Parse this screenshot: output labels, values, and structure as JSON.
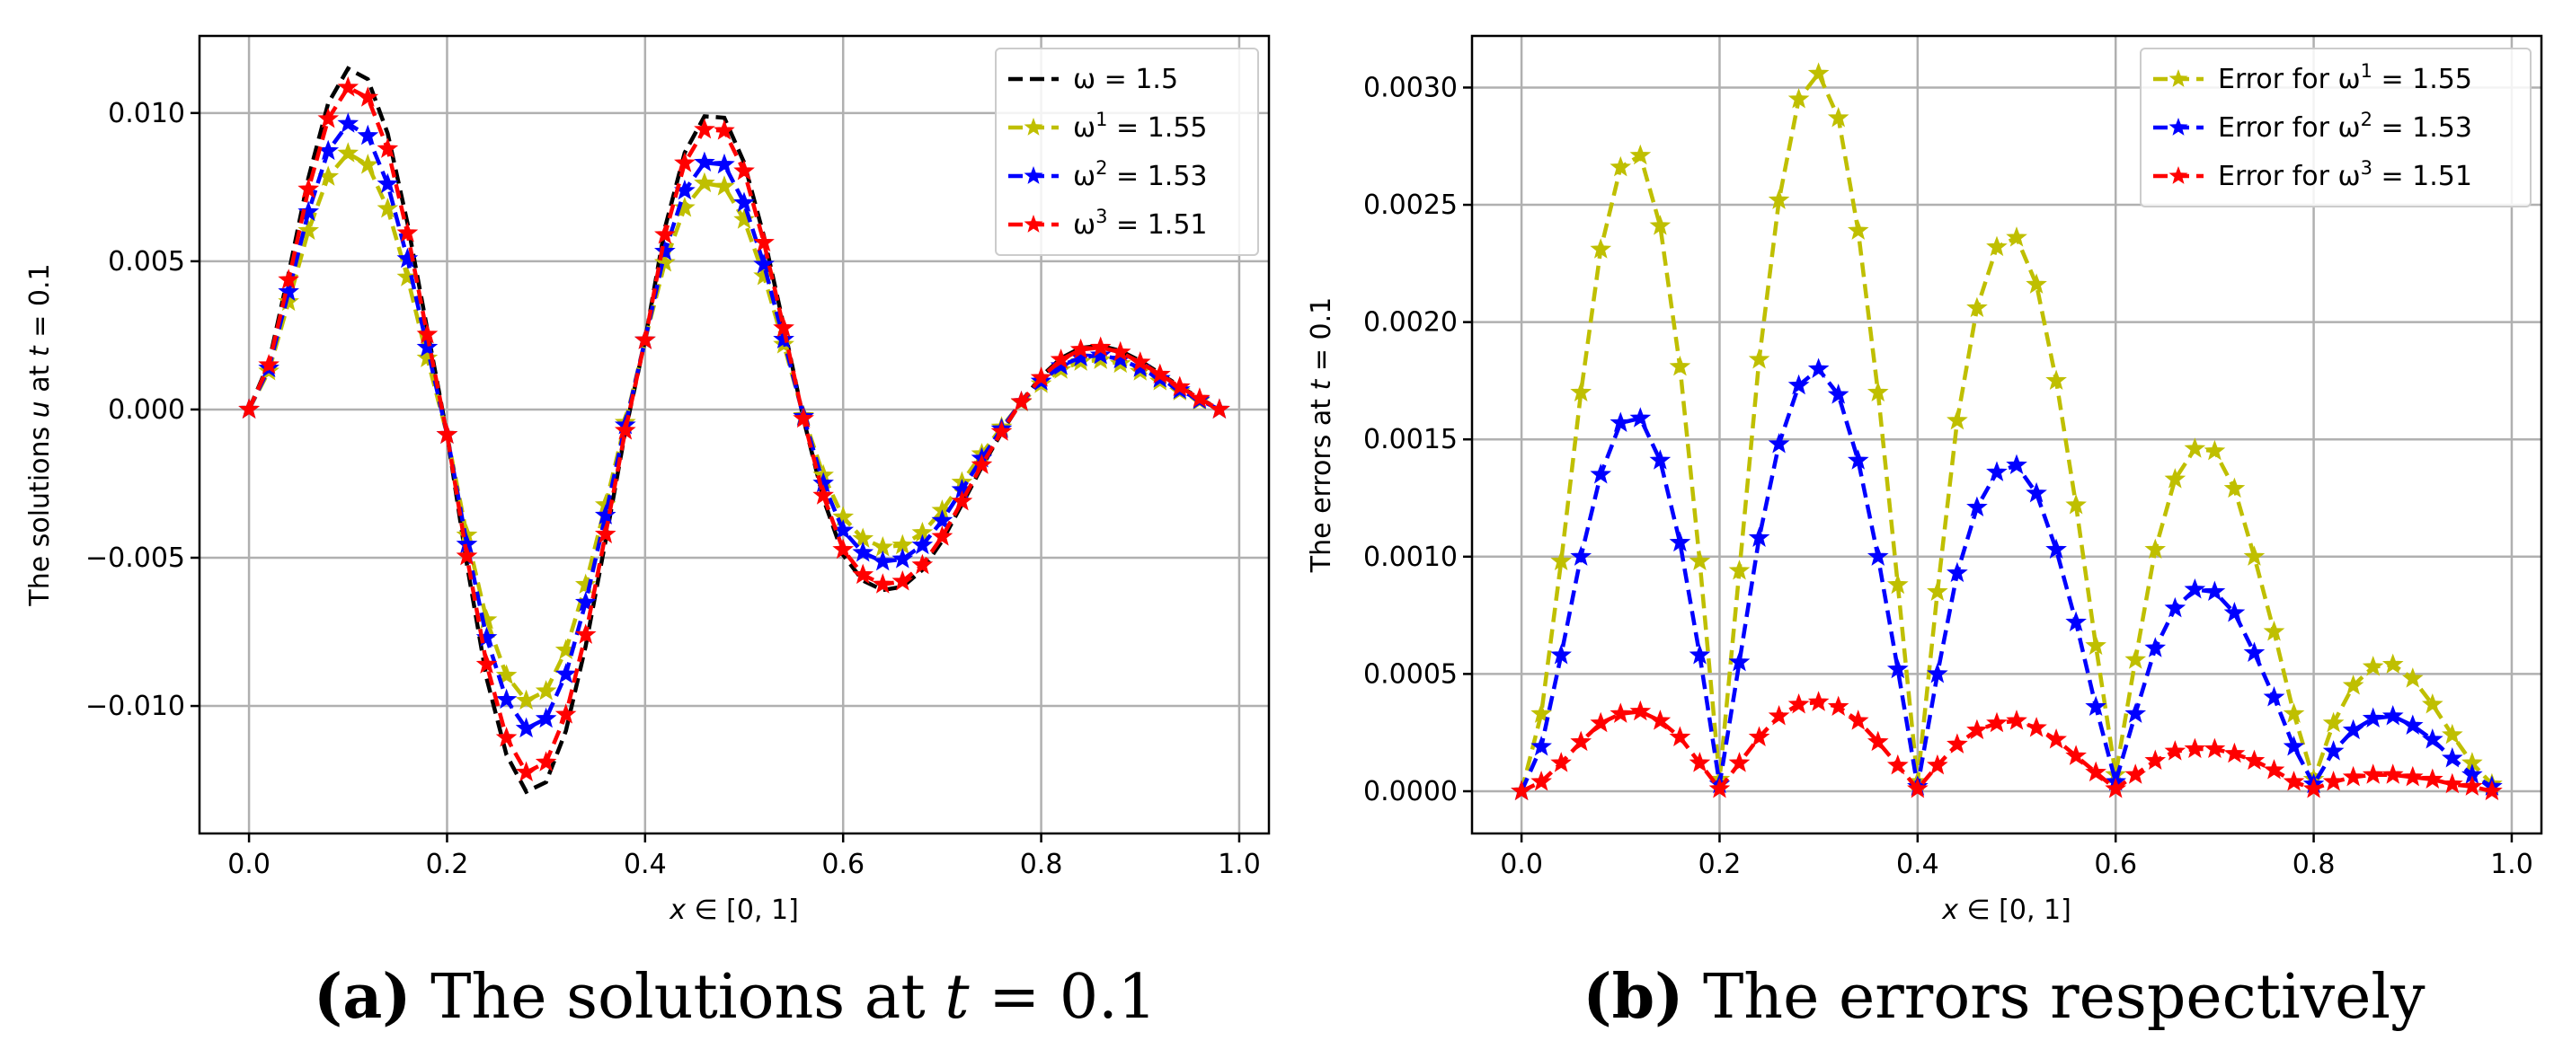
{
  "captions": {
    "a": {
      "label": "(a)",
      "text": "The solutions at ",
      "var": "t",
      "rest": " = 0.1"
    },
    "b": {
      "label": "(b)",
      "text": "The errors respectively"
    }
  },
  "chart_data": [
    {
      "type": "line",
      "title": "",
      "xlabel_parts": [
        "x",
        " ∈ [0, 1]"
      ],
      "ylabel_parts": [
        "The solutions ",
        "u",
        " at ",
        "t",
        " = 0.1"
      ],
      "xlim": [
        -0.05,
        1.03
      ],
      "ylim": [
        -0.0143,
        0.0126
      ],
      "xticks": [
        0.0,
        0.2,
        0.4,
        0.6,
        0.8,
        1.0
      ],
      "xtick_labels": [
        "0.0",
        "0.2",
        "0.4",
        "0.6",
        "0.8",
        "1.0"
      ],
      "yticks": [
        -0.01,
        -0.005,
        0.0,
        0.005,
        0.01
      ],
      "ytick_labels": [
        "−0.010",
        "−0.005",
        "0.000",
        "0.005",
        "0.010"
      ],
      "grid": true,
      "legend_position": "top-right",
      "x": [
        0.0,
        0.02,
        0.04,
        0.06,
        0.08,
        0.1,
        0.12,
        0.14,
        0.16,
        0.18,
        0.2,
        0.22,
        0.24,
        0.26,
        0.28,
        0.3,
        0.32,
        0.34,
        0.36,
        0.38,
        0.4,
        0.42,
        0.44,
        0.46,
        0.48,
        0.5,
        0.52,
        0.54,
        0.56,
        0.58,
        0.6,
        0.62,
        0.64,
        0.66,
        0.68,
        0.7,
        0.72,
        0.74,
        0.76,
        0.78,
        0.8,
        0.82,
        0.84,
        0.86,
        0.88,
        0.9,
        0.92,
        0.94,
        0.96,
        0.98
      ],
      "series": [
        {
          "name": "ω  = 1.5",
          "label_parts": [
            "ω",
            "",
            "  = 1.5"
          ],
          "color": "#000000",
          "marker": "none",
          "values": [
            0.0,
            0.00157,
            0.00459,
            0.00781,
            0.01033,
            0.0115,
            0.01114,
            0.00931,
            0.00629,
            0.00271,
            -0.00085,
            -0.00521,
            -0.00907,
            -0.01165,
            -0.01289,
            -0.01257,
            -0.01084,
            -0.00798,
            -0.00444,
            -0.00074,
            0.00234,
            0.00612,
            0.00866,
            0.00989,
            0.00984,
            0.00833,
            0.00584,
            0.00283,
            -0.00032,
            -0.00301,
            -0.00491,
            -0.00577,
            -0.00609,
            -0.00598,
            -0.00541,
            -0.00443,
            -0.0032,
            -0.00194,
            -0.00078,
            0.00027,
            0.00111,
            0.00173,
            0.00208,
            0.00215,
            0.00198,
            0.00164,
            0.00122,
            0.00078,
            0.00038,
            0.0
          ]
        },
        {
          "name": "ω¹ = 1.55",
          "label_parts": [
            "ω",
            "1",
            " = 1.55"
          ],
          "color": "#bfbf00",
          "marker": "star",
          "values": [
            0.0,
            0.00129,
            0.00363,
            0.00603,
            0.00785,
            0.00864,
            0.00825,
            0.00677,
            0.00446,
            0.00173,
            -0.00085,
            -0.00424,
            -0.0071,
            -0.00897,
            -0.00982,
            -0.0095,
            -0.00812,
            -0.00591,
            -0.00322,
            -0.00044,
            0.00234,
            0.00495,
            0.0068,
            0.00763,
            0.00752,
            0.0064,
            0.0045,
            0.00219,
            -0.00021,
            -0.00222,
            -0.00363,
            -0.00436,
            -0.00465,
            -0.00458,
            -0.00416,
            -0.00341,
            -0.00246,
            -0.0015,
            -0.0006,
            0.00024,
            0.00086,
            0.00134,
            0.00161,
            0.00167,
            0.00154,
            0.00128,
            0.00095,
            0.00061,
            0.00029,
            0.0
          ]
        },
        {
          "name": "ω² = 1.53",
          "label_parts": [
            "ω",
            "2",
            " = 1.53"
          ],
          "color": "#0000ff",
          "marker": "star",
          "values": [
            0.0,
            0.00139,
            0.00397,
            0.00666,
            0.00872,
            0.00964,
            0.00923,
            0.0076,
            0.00508,
            0.00209,
            -0.00085,
            -0.00455,
            -0.0077,
            -0.00979,
            -0.01076,
            -0.01043,
            -0.00893,
            -0.00651,
            -0.00357,
            -0.00053,
            0.00234,
            0.00533,
            0.00738,
            0.00833,
            0.00826,
            0.00697,
            0.00489,
            0.00236,
            -0.00024,
            -0.00249,
            -0.00408,
            -0.00483,
            -0.00513,
            -0.00505,
            -0.00458,
            -0.00375,
            -0.00271,
            -0.00165,
            -0.00066,
            0.00026,
            0.00095,
            0.00147,
            0.00176,
            0.00183,
            0.00169,
            0.0014,
            0.00104,
            0.00066,
            0.00032,
            0.0
          ]
        },
        {
          "name": "ω³ = 1.51",
          "label_parts": [
            "ω",
            "3",
            " = 1.51"
          ],
          "color": "#ff0000",
          "marker": "star",
          "values": [
            0.0,
            0.0015,
            0.00437,
            0.00743,
            0.0098,
            0.01086,
            0.01052,
            0.00879,
            0.00595,
            0.00253,
            -0.00085,
            -0.00495,
            -0.0086,
            -0.01107,
            -0.01224,
            -0.0119,
            -0.01029,
            -0.0076,
            -0.00421,
            -0.00071,
            0.00234,
            0.00589,
            0.00831,
            0.00944,
            0.0094,
            0.00804,
            0.00563,
            0.00275,
            -0.00031,
            -0.0029,
            -0.00473,
            -0.00558,
            -0.0059,
            -0.0058,
            -0.00525,
            -0.00429,
            -0.0031,
            -0.00187,
            -0.00075,
            0.00026,
            0.00107,
            0.00168,
            0.00202,
            0.00209,
            0.00193,
            0.00159,
            0.00118,
            0.00076,
            0.00037,
            0.0
          ]
        }
      ]
    },
    {
      "type": "line",
      "title": "",
      "xlabel_parts": [
        "x",
        " ∈ [0, 1]"
      ],
      "ylabel_parts": [
        "The errors at ",
        "t",
        " = 0.1"
      ],
      "xlim": [
        -0.05,
        1.03
      ],
      "ylim": [
        -0.00018,
        0.00322
      ],
      "xticks": [
        0.0,
        0.2,
        0.4,
        0.6,
        0.8,
        1.0
      ],
      "xtick_labels": [
        "0.0",
        "0.2",
        "0.4",
        "0.6",
        "0.8",
        "1.0"
      ],
      "yticks": [
        0.0,
        0.0005,
        0.001,
        0.0015,
        0.002,
        0.0025,
        0.003
      ],
      "ytick_labels": [
        "0.0000",
        "0.0005",
        "0.0010",
        "0.0015",
        "0.0020",
        "0.0025",
        "0.0030"
      ],
      "grid": true,
      "legend_position": "top-right",
      "x": [
        0.0,
        0.02,
        0.04,
        0.06,
        0.08,
        0.1,
        0.12,
        0.14,
        0.16,
        0.18,
        0.2,
        0.22,
        0.24,
        0.26,
        0.28,
        0.3,
        0.32,
        0.34,
        0.36,
        0.38,
        0.4,
        0.42,
        0.44,
        0.46,
        0.48,
        0.5,
        0.52,
        0.54,
        0.56,
        0.58,
        0.6,
        0.62,
        0.64,
        0.66,
        0.68,
        0.7,
        0.72,
        0.74,
        0.76,
        0.78,
        0.8,
        0.82,
        0.84,
        0.86,
        0.88,
        0.9,
        0.92,
        0.94,
        0.96,
        0.98
      ],
      "series": [
        {
          "name": "Error for ω¹ = 1.55",
          "label_parts": [
            "Error for ω",
            "1",
            " = 1.55"
          ],
          "color": "#bfbf00",
          "marker": "star",
          "values": [
            0.0,
            0.00033,
            0.00098,
            0.0017,
            0.00231,
            0.00266,
            0.00271,
            0.00241,
            0.00181,
            0.00098,
            5e-05,
            0.00094,
            0.00184,
            0.00252,
            0.00295,
            0.00306,
            0.00287,
            0.00239,
            0.0017,
            0.00088,
            4e-05,
            0.00085,
            0.00158,
            0.00206,
            0.00232,
            0.00236,
            0.00216,
            0.00175,
            0.00122,
            0.00062,
            7e-05,
            0.00056,
            0.00103,
            0.00133,
            0.00146,
            0.00145,
            0.00129,
            0.001,
            0.00068,
            0.00033,
            5e-05,
            0.00029,
            0.00045,
            0.00053,
            0.00054,
            0.00048,
            0.00037,
            0.00024,
            0.00012,
            3e-05
          ]
        },
        {
          "name": "Error for ω² = 1.53",
          "label_parts": [
            "Error for ω",
            "2",
            " = 1.53"
          ],
          "color": "#0000ff",
          "marker": "star",
          "values": [
            0.0,
            0.00019,
            0.00058,
            0.001,
            0.00135,
            0.00157,
            0.00159,
            0.00141,
            0.00106,
            0.00058,
            3e-05,
            0.00055,
            0.00108,
            0.00148,
            0.00173,
            0.0018,
            0.00169,
            0.00141,
            0.001,
            0.00052,
            2e-05,
            0.0005,
            0.00093,
            0.00121,
            0.00136,
            0.00139,
            0.00127,
            0.00103,
            0.00072,
            0.00036,
            4e-05,
            0.00033,
            0.00061,
            0.00078,
            0.00086,
            0.00085,
            0.00076,
            0.00059,
            0.0004,
            0.00019,
            3e-05,
            0.00017,
            0.00026,
            0.00031,
            0.00032,
            0.00028,
            0.00022,
            0.00014,
            7e-05,
            2e-05
          ]
        },
        {
          "name": "Error for ω³ = 1.51",
          "label_parts": [
            "Error for ω",
            "3",
            " = 1.51"
          ],
          "color": "#ff0000",
          "marker": "star",
          "values": [
            0.0,
            4e-05,
            0.00012,
            0.00021,
            0.00029,
            0.00033,
            0.00034,
            0.0003,
            0.00023,
            0.00012,
            1e-05,
            0.00012,
            0.00023,
            0.00032,
            0.00037,
            0.00038,
            0.00036,
            0.0003,
            0.00021,
            0.00011,
            1e-05,
            0.00011,
            0.0002,
            0.00026,
            0.00029,
            0.0003,
            0.00027,
            0.00022,
            0.00015,
            8e-05,
            1e-05,
            7e-05,
            0.00013,
            0.00017,
            0.00018,
            0.00018,
            0.00016,
            0.00013,
            9e-05,
            4e-05,
            1e-05,
            4e-05,
            6e-05,
            7e-05,
            7e-05,
            6e-05,
            5e-05,
            3e-05,
            2e-05,
            0.0
          ]
        }
      ]
    }
  ]
}
